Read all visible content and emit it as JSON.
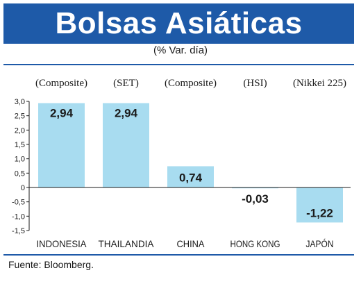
{
  "header": {
    "title": "Bolsas Asiáticas",
    "subtitle": "(% Var. día)"
  },
  "source": "Fuente: Bloomberg.",
  "colors": {
    "header_bg": "#1e5aa8",
    "bar_fill": "#a8dcf0",
    "axis": "#1a1a1a"
  },
  "chart_data": {
    "type": "bar",
    "categories": [
      "INDONESIA",
      "THAILANDIA",
      "CHINA",
      "HONG KONG",
      "JAPÓN"
    ],
    "index_names": [
      "(Composite)",
      "(SET)",
      "(Composite)",
      "(HSI)",
      "(Nikkei 225)"
    ],
    "values": [
      2.94,
      2.94,
      0.74,
      -0.03,
      -1.22
    ],
    "value_labels": [
      "2,94",
      "2,94",
      "0,74",
      "-0,03",
      "-1,22"
    ],
    "y_ticks": [
      "3,0",
      "2,5",
      "2,0",
      "1,5",
      "1,0",
      "0,5",
      "0",
      "-0,5",
      "-1,0",
      "-1,5"
    ],
    "ylim": [
      -1.5,
      3.0
    ],
    "title": "Bolsas Asiáticas",
    "subtitle": "(% Var. día)",
    "xlabel": "",
    "ylabel": "",
    "grid": false,
    "legend": "none"
  }
}
